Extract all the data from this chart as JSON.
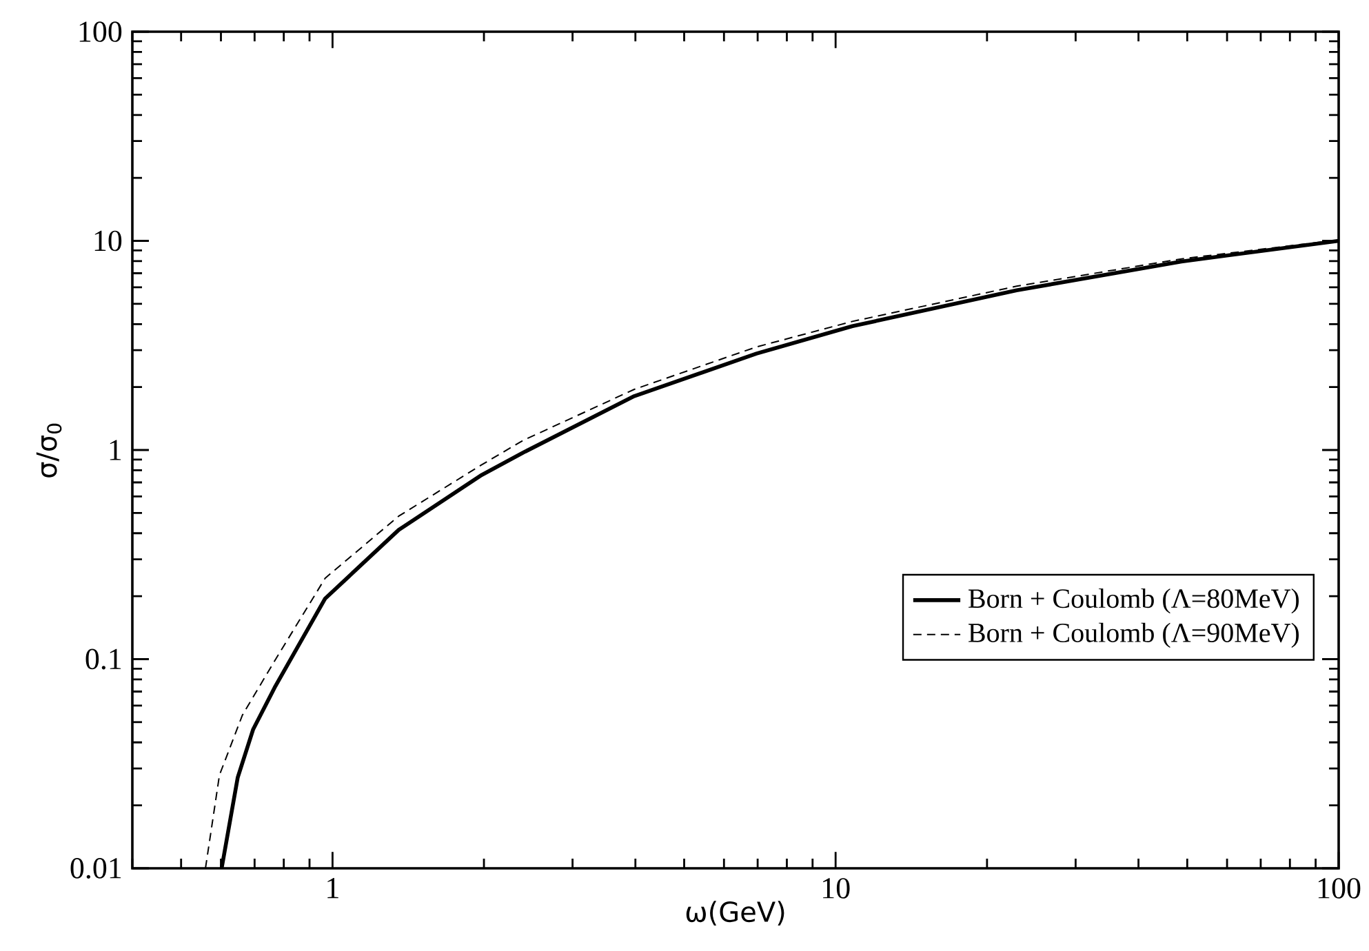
{
  "chart_data": {
    "type": "line",
    "xlabel": "ω(GeV)",
    "ylabel": "σ/σ$_{0}$",
    "log": "xy",
    "xlim": [
      0.4,
      100
    ],
    "ylim": [
      0.01,
      100
    ],
    "xticks": [
      1,
      10,
      100
    ],
    "yticks": [
      0.01,
      0.1,
      1,
      10,
      100
    ],
    "grid": false,
    "legend": "right",
    "marker": "none",
    "series": [
      {
        "name": "Born + Coulomb (Λ=80MeV)",
        "color": "#000000",
        "line_style": "solid",
        "x": [
          0.602,
          0.648,
          0.695,
          0.767,
          0.967,
          1.354,
          1.98,
          2.39,
          3.98,
          6.96,
          10.8,
          22.9,
          48.7,
          100
        ],
        "values": [
          0.01,
          0.0272,
          0.046,
          0.073,
          0.195,
          0.415,
          0.76,
          0.97,
          1.81,
          2.89,
          3.91,
          5.8,
          7.97,
          10.0
        ]
      },
      {
        "name": "Born + Coulomb (Λ=90MeV)",
        "color": "#000000",
        "line_style": "dashed",
        "x": [
          0.559,
          0.596,
          0.662,
          0.767,
          0.967,
          1.354,
          1.98,
          2.39,
          3.98,
          6.96,
          10.8,
          22.9,
          48.7,
          100
        ],
        "values": [
          0.01,
          0.0279,
          0.054,
          0.098,
          0.244,
          0.483,
          0.85,
          1.11,
          1.95,
          3.11,
          4.12,
          6.07,
          8.2,
          10.1
        ]
      }
    ]
  }
}
